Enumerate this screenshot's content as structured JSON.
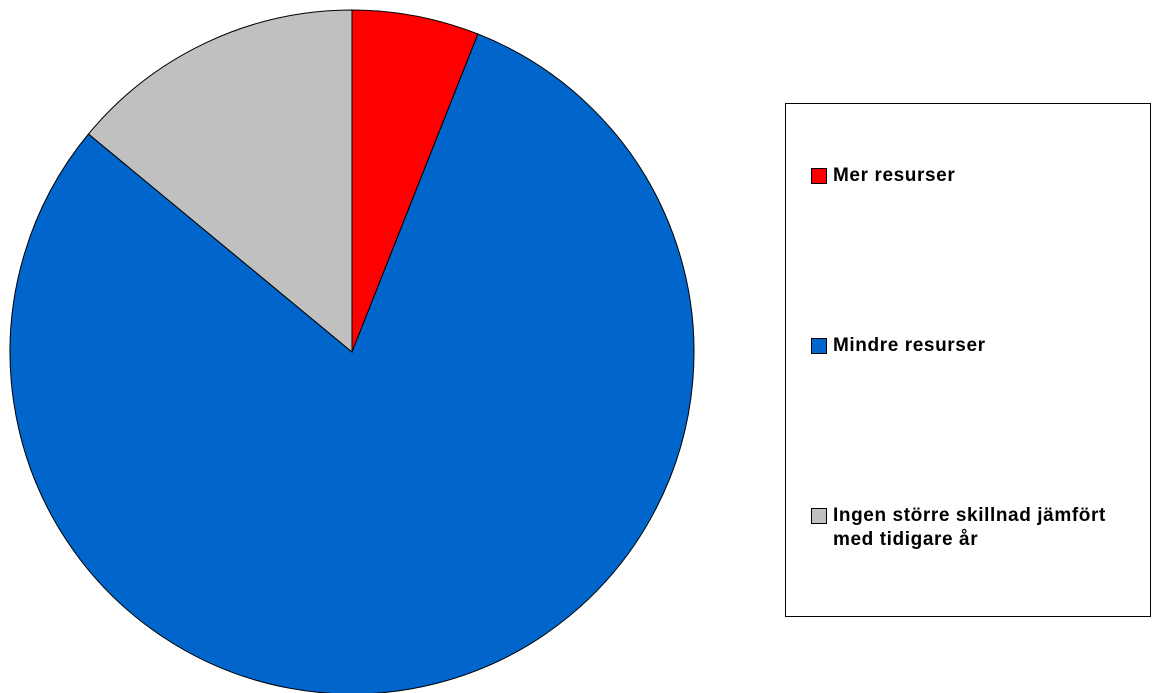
{
  "chart_data": {
    "type": "pie",
    "categories": [
      "Mer resurser",
      "Mindre resurser",
      "Ingen större skillnad jämfört med tidigare år"
    ],
    "values": [
      6,
      80,
      14
    ],
    "colors": [
      "#ff0000",
      "#0066cc",
      "#c0c0c0"
    ],
    "legend": "right"
  }
}
